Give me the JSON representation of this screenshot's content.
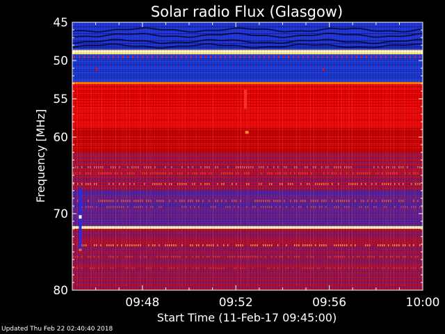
{
  "chart_data": {
    "type": "heatmap",
    "title": "Solar radio Flux (Glasgow)",
    "xlabel": "Start Time (11-Feb-17 09:45:00)",
    "ylabel": "Frequency [MHz]",
    "y_ticks": [
      45,
      50,
      55,
      60,
      70,
      80
    ],
    "x_ticks": [
      "09:48",
      "09:52",
      "09:56",
      "10:00"
    ],
    "x_tick_minutes": [
      3,
      7,
      11,
      15
    ],
    "xlim_minutes": [
      0,
      15
    ],
    "ylim_mhz": [
      45,
      80
    ],
    "y_axis_direction": "increasing downward",
    "colormap": [
      "#0a0a50",
      "#1e32d2",
      "#3c3cc8",
      "#8a1a8a",
      "#c80000",
      "#ff1e1e",
      "#ff7a00",
      "#ffe070",
      "#ffffff"
    ],
    "frequency_bands": [
      {
        "from_mhz": 45.0,
        "to_mhz": 48.6,
        "level": "low",
        "color": "#1e32d2"
      },
      {
        "from_mhz": 48.6,
        "to_mhz": 49.2,
        "level": "very high",
        "color": "#ffe070"
      },
      {
        "from_mhz": 49.2,
        "to_mhz": 52.8,
        "level": "low",
        "color": "#1e3cd8"
      },
      {
        "from_mhz": 52.8,
        "to_mhz": 53.1,
        "level": "high",
        "color": "#ff7a00"
      },
      {
        "from_mhz": 53.1,
        "to_mhz": 58.8,
        "level": "medium-high",
        "color": "#e60000"
      },
      {
        "from_mhz": 58.8,
        "to_mhz": 62.0,
        "level": "medium",
        "color": "#c80000"
      },
      {
        "from_mhz": 62.0,
        "to_mhz": 67.0,
        "level": "medium-low",
        "color": "#a8103c"
      },
      {
        "from_mhz": 67.0,
        "to_mhz": 71.6,
        "level": "low-medium",
        "color": "#5a1e96"
      },
      {
        "from_mhz": 71.6,
        "to_mhz": 72.0,
        "level": "very high",
        "color": "#ffd250"
      },
      {
        "from_mhz": 72.0,
        "to_mhz": 80.0,
        "level": "medium-low",
        "color": "#a01040"
      }
    ]
  },
  "footer": {
    "updated": "Updated Thu Feb 22 02:40:40 2018"
  }
}
